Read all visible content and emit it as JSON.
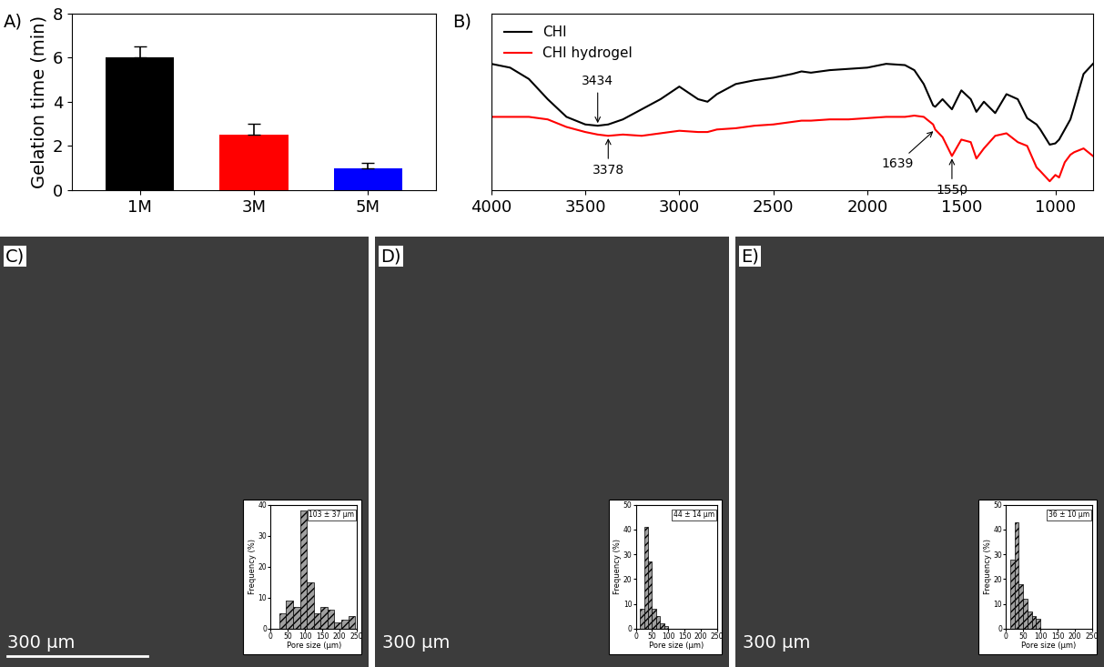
{
  "chart_data": [
    {
      "type": "bar",
      "title": "A)",
      "categories": [
        "1M",
        "3M",
        "5M"
      ],
      "values": [
        6.0,
        2.5,
        1.0
      ],
      "errors": [
        0.5,
        0.5,
        0.25
      ],
      "colors": [
        "#000000",
        "#ff0000",
        "#0000ff"
      ],
      "y_label": "Gelation time (min)",
      "ylim": [
        0,
        8
      ],
      "yticks": [
        0,
        2,
        4,
        6,
        8
      ]
    },
    {
      "type": "line",
      "title": "B)",
      "x": [
        4000,
        3900,
        3800,
        3700,
        3600,
        3500,
        3434,
        3378,
        3300,
        3200,
        3100,
        3000,
        2900,
        2850,
        2800,
        2700,
        2600,
        2500,
        2400,
        2350,
        2300,
        2200,
        2100,
        2000,
        1900,
        1800,
        1750,
        1700,
        1650,
        1639,
        1600,
        1550,
        1500,
        1450,
        1420,
        1380,
        1320,
        1260,
        1200,
        1150,
        1100,
        1080,
        1030,
        1000,
        980,
        950,
        920,
        900,
        850,
        800
      ],
      "series": [
        {
          "name": "CHI",
          "color": "#000000",
          "values": [
            100,
            97,
            88,
            72,
            58,
            52,
            51,
            52,
            56,
            64,
            72,
            82,
            72,
            70,
            76,
            84,
            87,
            89,
            92,
            94,
            93,
            95,
            96,
            97,
            100,
            99,
            95,
            84,
            67,
            66,
            72,
            64,
            79,
            72,
            62,
            70,
            61,
            76,
            72,
            57,
            52,
            48,
            36,
            37,
            40,
            48,
            56,
            66,
            92,
            100
          ]
        },
        {
          "name": "CHI hydrogel",
          "color": "#ff0000",
          "values": [
            58,
            58,
            58,
            56,
            50,
            46,
            44,
            43,
            44,
            43,
            45,
            47,
            46,
            46,
            48,
            49,
            51,
            52,
            54,
            55,
            55,
            56,
            56,
            57,
            58,
            58,
            59,
            58,
            52,
            48,
            42,
            27,
            40,
            38,
            25,
            33,
            43,
            45,
            38,
            35,
            18,
            15,
            7,
            12,
            10,
            22,
            28,
            30,
            33,
            27
          ]
        }
      ],
      "xlim": [
        4000,
        800
      ],
      "xticks": [
        4000,
        3500,
        3000,
        2500,
        2000,
        1500,
        1000
      ],
      "ylim": [
        0,
        140
      ],
      "tick_labels": "x",
      "legend": "upper left",
      "annotations": [
        {
          "text": "3434",
          "x": 3434,
          "y": 51
        },
        {
          "text": "3378",
          "x": 3378,
          "y": 43
        },
        {
          "text": "1639",
          "x": 1639,
          "y": 48
        },
        {
          "text": "1550",
          "x": 1550,
          "y": 27
        }
      ]
    },
    {
      "type": "histogram",
      "title": "C)",
      "bins": [
        25,
        45,
        65,
        85,
        105,
        125,
        145,
        165,
        185,
        205,
        225,
        245
      ],
      "counts": [
        5,
        9,
        7,
        38,
        15,
        5,
        7,
        6,
        2,
        3,
        4
      ],
      "x_label": "Pore size (µm)",
      "y_label": "Frequency (%)",
      "xlim": [
        0,
        250
      ],
      "xticks": [
        0,
        50,
        100,
        150,
        200,
        250
      ],
      "ylim": [
        0,
        40
      ],
      "yticks": [
        0,
        10,
        20,
        30,
        40
      ],
      "annotations": [
        "103 ± 37 µm"
      ],
      "scale_label": "300 µm"
    },
    {
      "type": "histogram",
      "title": "D)",
      "bins": [
        12.5,
        25,
        37.5,
        50,
        62.5,
        75,
        87.5,
        100
      ],
      "counts": [
        8,
        41,
        27,
        8,
        5,
        2,
        1
      ],
      "x_label": "Pore size (µm)",
      "y_label": "Frequency (%)",
      "xlim": [
        0,
        250
      ],
      "xticks": [
        0,
        50,
        100,
        150,
        200,
        250
      ],
      "ylim": [
        0,
        50
      ],
      "yticks": [
        0,
        10,
        20,
        30,
        40,
        50
      ],
      "annotations": [
        "44 ± 14 µm"
      ],
      "scale_label": "300 µm"
    },
    {
      "type": "histogram",
      "title": "E)",
      "bins": [
        12.5,
        25,
        37.5,
        50,
        62.5,
        75,
        87.5,
        100
      ],
      "counts": [
        28,
        43,
        18,
        12,
        7,
        5,
        4
      ],
      "x_label": "Pore size (µm)",
      "y_label": "Frequency (%)",
      "xlim": [
        0,
        250
      ],
      "xticks": [
        0,
        50,
        100,
        150,
        200,
        250
      ],
      "ylim": [
        0,
        50
      ],
      "yticks": [
        0,
        10,
        20,
        30,
        40,
        50
      ],
      "annotations": [
        "36 ± 10 µm"
      ],
      "scale_label": "300 µm"
    }
  ]
}
